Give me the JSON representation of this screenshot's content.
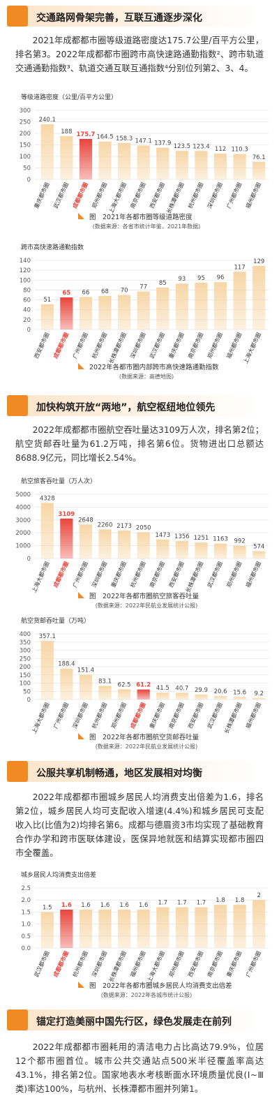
{
  "sections": [
    {
      "title": "交通路网骨架完善，互联互通逐步深化",
      "text": "2021年成都都市圈等级道路密度达175.7公里/百平方公里，排名第3。2022年成都都市圈跨市高快速路通勤指数²、跨市轨道交通通勤指数³、轨道交通互联互通指数⁴分别位列第2、3、4。"
    },
    {
      "title": "加快构筑开放“两地”，航空枢纽地位领先",
      "text": "2022年成都都市圈航空吞吐量达3109万人次，排名第2位；航空货邮吞吐量为61.2万吨，排名第6位。货物进出口总额达8688.9亿元，同比增长2.54%。"
    },
    {
      "title": "公服共享机制畅通，地区发展相对均衡",
      "text": "2022年成都都市圈城乡居民人均消费支出倍差为1.6，排名第2位，城乡居民人均可支配收入增速(4.4%)和城乡居民可支配收入比(比值为2)均排名第6。成都与德眉资3市均实现了基础教育合作办学和跨市医联体建设，医保异地就医和结算实现都市圈四市全覆盖。"
    },
    {
      "title": "锚定打造美丽中国先行区，绿色发展走在前列",
      "text": "2022年成都都市圈耗用的清洁电力占比高达79.9%，位居12个都市圈首位。城市公共交通站点500米半径覆盖率高达43.1%，排名第2位。国家地表水考核断面水环境质量优良(Ⅰ~Ⅲ类)率达100%，与杭州、长株潭都市圈并列第1。"
    }
  ],
  "chart_data": [
    {
      "type": "bar",
      "title": "等级道路密度（公里/百平方公里）",
      "caption": "图　2021年各都市圈等级道路密度",
      "source": "(数据来源：各省市统计年鉴，2021年数据)",
      "categories": [
        "重庆都市圈",
        "武汉都市圈",
        "成都都市圈",
        "郑州都市圈",
        "上海大都市圈",
        "南京都市圈",
        "西安都市圈",
        "长株潭都市圈",
        "杭州都市圈",
        "深圳都市圈",
        "广州都市圈",
        "福州都市圈"
      ],
      "values": [
        240.1,
        188,
        175.7,
        164.5,
        158.3,
        147.1,
        137.9,
        123.5,
        123.4,
        112,
        110.3,
        76.1
      ],
      "colors": [
        "#f7d6a6",
        "#f7d6a6",
        "#e8453c",
        "#f7d6a6",
        "#f7d6a6",
        "#f7d6a6",
        "#f7d6a6",
        "#f7d6a6",
        "#f7d6a6",
        "#f7d6a6",
        "#f7d6a6",
        "#f7d6a6"
      ],
      "highlight_color": "#e8453c",
      "ylim": [
        0,
        300
      ],
      "yticks": [
        0,
        50,
        100,
        150,
        200,
        250,
        300
      ],
      "grid": true
    },
    {
      "type": "bar",
      "title": "跨市高快速路通勤指数",
      "caption": "2022年各都市圈内部跨市高快速路通勤指数",
      "source": "(数据来源：高德地图)",
      "categories": [
        "西安都市圈",
        "成都都市圈",
        "广州都市圈",
        "杭州都市圈",
        "长株潭都市圈",
        "深圳都市圈",
        "武汉都市圈",
        "重庆都市圈",
        "南京都市圈",
        "郑州都市圈",
        "福州都市圈",
        "上海大都市圈"
      ],
      "values": [
        51,
        65,
        66,
        68,
        70,
        77,
        85,
        93,
        95,
        96,
        117,
        129
      ],
      "colors": [
        "#f7d6a6",
        "#e8453c",
        "#f7d6a6",
        "#f7d6a6",
        "#f7d6a6",
        "#f7d6a6",
        "#f7d6a6",
        "#f7d6a6",
        "#f7d6a6",
        "#f7d6a6",
        "#f7d6a6",
        "#f7d6a6"
      ],
      "highlight_color": "#e8453c",
      "ylim": [
        0,
        140
      ],
      "yticks": [
        0,
        20,
        40,
        60,
        80,
        100,
        120,
        140
      ],
      "grid": true
    },
    {
      "type": "bar",
      "title": "航空旅客吞吐量（万人次）",
      "caption": "图　2022年各都市圈航空旅客吞吐量",
      "source": "(数据来源：2022年民航业发展统计公报)",
      "categories": [
        "上海大都市圈",
        "成都都市圈",
        "广州都市圈",
        "深圳都市圈",
        "重庆都市圈",
        "杭州都市圈",
        "南京都市圈",
        "西安都市圈",
        "长株潭都市圈",
        "武汉都市圈",
        "郑州都市圈",
        "福州都市圈"
      ],
      "values": [
        4328,
        3109,
        2648,
        2260,
        2173,
        2050,
        1473,
        1356,
        1251,
        1163,
        992,
        574
      ],
      "colors": [
        "#f7d6a6",
        "#e8453c",
        "#f7d6a6",
        "#f7d6a6",
        "#f7d6a6",
        "#f7d6a6",
        "#f7d6a6",
        "#f7d6a6",
        "#f7d6a6",
        "#f7d6a6",
        "#f7d6a6",
        "#f7d6a6"
      ],
      "highlight_color": "#e8453c",
      "ylim": [
        0,
        5000
      ],
      "yticks": [
        0,
        1000,
        2000,
        3000,
        4000,
        5000
      ],
      "grid": true
    },
    {
      "type": "bar",
      "title": "航空货邮吞吐量（万吨）",
      "caption": "图　2022年各都市圈航空货邮吞吐量",
      "source": "(数据来源：2022年民航业发展统计公报)",
      "categories": [
        "上海大都市圈",
        "广州都市圈",
        "深圳都市圈",
        "杭州都市圈",
        "郑州都市圈",
        "成都都市圈",
        "重庆都市圈",
        "南京都市圈",
        "西安都市圈",
        "武汉都市圈",
        "长株潭都市圈",
        "福州都市圈"
      ],
      "values": [
        357.1,
        188.4,
        151.4,
        83.1,
        62.5,
        61.2,
        41.5,
        40.7,
        29.9,
        20.6,
        15.6,
        9.2
      ],
      "colors": [
        "#f7d6a6",
        "#f7d6a6",
        "#f7d6a6",
        "#f7d6a6",
        "#f7d6a6",
        "#e8453c",
        "#f7d6a6",
        "#f7d6a6",
        "#f7d6a6",
        "#f7d6a6",
        "#f7d6a6",
        "#f7d6a6"
      ],
      "highlight_color": "#e8453c",
      "ylim": [
        0,
        400
      ],
      "yticks": [
        0,
        50,
        100,
        150,
        200,
        250,
        300,
        350,
        400
      ],
      "grid": true
    },
    {
      "type": "bar",
      "title": "城乡居民人均消费支出倍差",
      "caption": "图　2022年各都市圈城乡居民人均消费支出倍差",
      "source": "(数据来源：2022年各城市统计公报)",
      "categories": [
        "武汉都市圈",
        "成都都市圈",
        "杭州都市圈",
        "深圳都市圈",
        "长株潭都市圈",
        "福州都市圈",
        "上海大都市圈",
        "郑州都市圈",
        "西安都市圈",
        "南京都市圈",
        "重庆都市圈",
        "广州都市圈"
      ],
      "values": [
        1.5,
        1.6,
        1.6,
        1.6,
        1.6,
        1.6,
        1.7,
        1.7,
        1.7,
        1.8,
        1.8,
        2
      ],
      "colors": [
        "#f7d6a6",
        "#e8453c",
        "#f7d6a6",
        "#f7d6a6",
        "#f7d6a6",
        "#f7d6a6",
        "#f7d6a6",
        "#f7d6a6",
        "#f7d6a6",
        "#f7d6a6",
        "#f7d6a6",
        "#f7d6a6"
      ],
      "highlight_color": "#e8453c",
      "ylim": [
        0,
        2.5
      ],
      "yticks": [
        {
          "value": 0,
          "label": "0.0"
        },
        0.5,
        {
          "value": 1,
          "label": "1.0"
        },
        1.5,
        {
          "value": 2,
          "label": "2.0"
        },
        2.5
      ],
      "grid": true
    }
  ]
}
